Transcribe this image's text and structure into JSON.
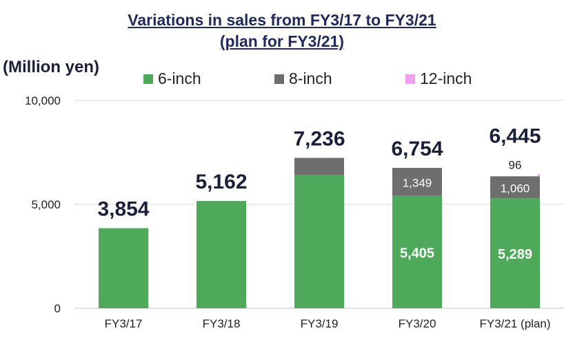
{
  "header": {
    "title_line1": "Variations in sales from FY3/17 to FY3/21",
    "title_line2": "(plan for FY3/21)",
    "ylabel": "(Million yen)"
  },
  "colors": {
    "six_inch": "#4fa95a",
    "eight_inch": "#6e6e6e",
    "twelve_inch": "#f0a0f0",
    "total_label": "#1a1f3a"
  },
  "chart_data": {
    "type": "bar",
    "stacked": true,
    "ylim": [
      0,
      10000
    ],
    "yticks": [
      "0",
      "5,000",
      "10,000"
    ],
    "ytick_values": [
      0,
      5000,
      10000
    ],
    "grid": true,
    "legend_position": "top",
    "categories": [
      "FY3/17",
      "FY3/18",
      "FY3/19",
      "FY3/20",
      "FY3/21 (plan)"
    ],
    "series": [
      {
        "name": "6-inch",
        "values": [
          3854,
          5162,
          6410,
          5405,
          5289
        ],
        "labels": [
          "",
          "",
          "",
          "5,405",
          "5,289"
        ]
      },
      {
        "name": "8-inch",
        "values": [
          0,
          0,
          826,
          1349,
          1060
        ],
        "labels": [
          "",
          "",
          "",
          "1,349",
          "1,060"
        ]
      },
      {
        "name": "12-inch",
        "values": [
          0,
          0,
          0,
          0,
          96
        ],
        "labels": [
          "",
          "",
          "",
          "",
          "96"
        ]
      }
    ],
    "totals": [
      3854,
      5162,
      7236,
      6754,
      6445
    ],
    "total_labels": [
      "3,854",
      "5,162",
      "7,236",
      "6,754",
      "6,445"
    ]
  }
}
